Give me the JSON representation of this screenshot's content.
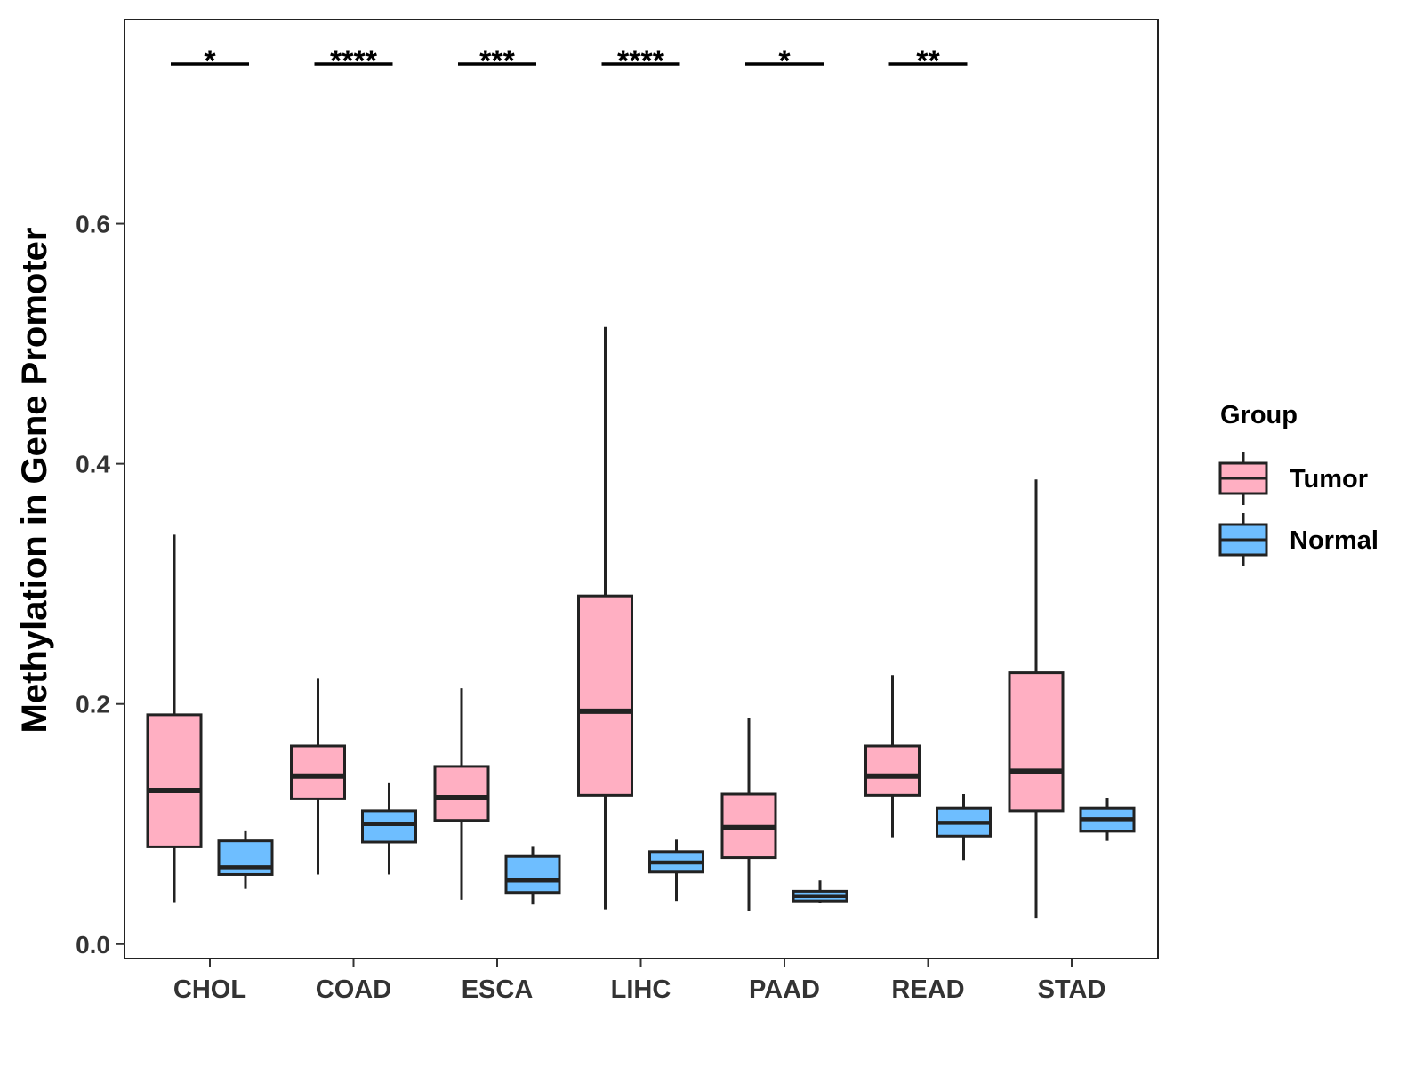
{
  "chart_data": {
    "type": "box",
    "title": "",
    "xlabel": "",
    "ylabel": "Methylation in Gene Promoter",
    "ylim": [
      -0.012,
      0.77
    ],
    "yticks": [
      "0.0",
      "0.2",
      "0.4",
      "0.6"
    ],
    "ytick_values": [
      0.0,
      0.2,
      0.4,
      0.6
    ],
    "grid": false,
    "categories": [
      "CHOL",
      "COAD",
      "ESCA",
      "LIHC",
      "PAAD",
      "READ",
      "STAD"
    ],
    "legend": {
      "title": "Group",
      "position": "right",
      "entries": [
        "Tumor",
        "Normal"
      ]
    },
    "series": [
      {
        "name": "Tumor",
        "color": "#FFAFC2",
        "boxes": [
          {
            "min": 0.035,
            "q1": 0.081,
            "median": 0.128,
            "q3": 0.191,
            "max": 0.341
          },
          {
            "min": 0.058,
            "q1": 0.121,
            "median": 0.14,
            "q3": 0.165,
            "max": 0.221
          },
          {
            "min": 0.037,
            "q1": 0.103,
            "median": 0.122,
            "q3": 0.148,
            "max": 0.213
          },
          {
            "min": 0.029,
            "q1": 0.124,
            "median": 0.194,
            "q3": 0.29,
            "max": 0.514
          },
          {
            "min": 0.028,
            "q1": 0.072,
            "median": 0.097,
            "q3": 0.125,
            "max": 0.188
          },
          {
            "min": 0.089,
            "q1": 0.124,
            "median": 0.14,
            "q3": 0.165,
            "max": 0.224
          },
          {
            "min": 0.022,
            "q1": 0.111,
            "median": 0.144,
            "q3": 0.226,
            "max": 0.387
          }
        ]
      },
      {
        "name": "Normal",
        "color": "#6EBEFF",
        "boxes": [
          {
            "min": 0.046,
            "q1": 0.058,
            "median": 0.064,
            "q3": 0.086,
            "max": 0.094
          },
          {
            "min": 0.058,
            "q1": 0.085,
            "median": 0.1,
            "q3": 0.111,
            "max": 0.134
          },
          {
            "min": 0.033,
            "q1": 0.043,
            "median": 0.053,
            "q3": 0.073,
            "max": 0.081
          },
          {
            "min": 0.036,
            "q1": 0.06,
            "median": 0.068,
            "q3": 0.077,
            "max": 0.087
          },
          {
            "min": 0.034,
            "q1": 0.036,
            "median": 0.04,
            "q3": 0.044,
            "max": 0.053
          },
          {
            "min": 0.07,
            "q1": 0.09,
            "median": 0.101,
            "q3": 0.113,
            "max": 0.125
          },
          {
            "min": 0.086,
            "q1": 0.094,
            "median": 0.104,
            "q3": 0.113,
            "max": 0.122
          }
        ]
      }
    ],
    "annotations": [
      {
        "category": "CHOL",
        "label": "*",
        "y": 0.733
      },
      {
        "category": "COAD",
        "label": "****",
        "y": 0.733
      },
      {
        "category": "ESCA",
        "label": "***",
        "y": 0.733
      },
      {
        "category": "LIHC",
        "label": "****",
        "y": 0.733
      },
      {
        "category": "PAAD",
        "label": "*",
        "y": 0.733
      },
      {
        "category": "READ",
        "label": "**",
        "y": 0.733
      }
    ]
  }
}
